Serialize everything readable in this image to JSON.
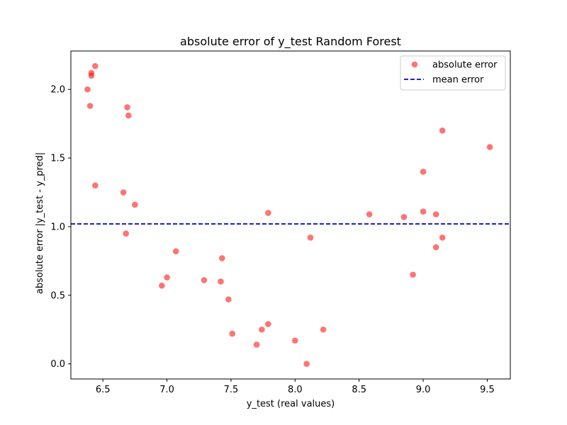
{
  "chart_data": {
    "type": "scatter",
    "title": "absolute error of y_test Random Forest",
    "xlabel": "y_test (real values)",
    "ylabel": "absolute error |y_test - y_pred|",
    "xlim": [
      6.25,
      9.68
    ],
    "ylim": [
      -0.11,
      2.28
    ],
    "xticks": [
      6.5,
      7.0,
      7.5,
      8.0,
      8.5,
      9.0,
      9.5
    ],
    "xtick_labels": [
      "6.5",
      "7.0",
      "7.5",
      "8.0",
      "8.5",
      "9.0",
      "9.5"
    ],
    "yticks": [
      0.0,
      0.5,
      1.0,
      1.5,
      2.0
    ],
    "ytick_labels": [
      "0.0",
      "0.5",
      "1.0",
      "1.5",
      "2.0"
    ],
    "grid": false,
    "legend_position": "top-right",
    "series": [
      {
        "name": "absolute error",
        "kind": "scatter",
        "color": "#ff0000",
        "opacity": 0.55,
        "points": [
          [
            6.38,
            2.0
          ],
          [
            6.41,
            2.12
          ],
          [
            6.41,
            2.1
          ],
          [
            6.44,
            2.17
          ],
          [
            6.4,
            1.88
          ],
          [
            6.44,
            1.3
          ],
          [
            6.69,
            1.87
          ],
          [
            6.7,
            1.81
          ],
          [
            6.66,
            1.25
          ],
          [
            6.75,
            1.16
          ],
          [
            6.68,
            0.95
          ],
          [
            6.96,
            0.57
          ],
          [
            7.0,
            0.63
          ],
          [
            7.07,
            0.82
          ],
          [
            7.29,
            0.61
          ],
          [
            7.42,
            0.6
          ],
          [
            7.43,
            0.77
          ],
          [
            7.48,
            0.47
          ],
          [
            7.51,
            0.22
          ],
          [
            7.7,
            0.14
          ],
          [
            7.74,
            0.25
          ],
          [
            7.79,
            0.29
          ],
          [
            7.79,
            1.1
          ],
          [
            8.0,
            0.17
          ],
          [
            8.09,
            0.0
          ],
          [
            8.12,
            0.92
          ],
          [
            8.22,
            0.25
          ],
          [
            8.58,
            1.09
          ],
          [
            8.85,
            1.07
          ],
          [
            8.92,
            0.65
          ],
          [
            9.0,
            1.11
          ],
          [
            9.0,
            1.4
          ],
          [
            9.1,
            1.09
          ],
          [
            9.1,
            0.85
          ],
          [
            9.15,
            1.7
          ],
          [
            9.15,
            0.92
          ],
          [
            9.52,
            1.58
          ]
        ]
      },
      {
        "name": "mean error",
        "kind": "hline",
        "color": "#0000cc",
        "value": 1.02,
        "dashed": true
      }
    ]
  }
}
